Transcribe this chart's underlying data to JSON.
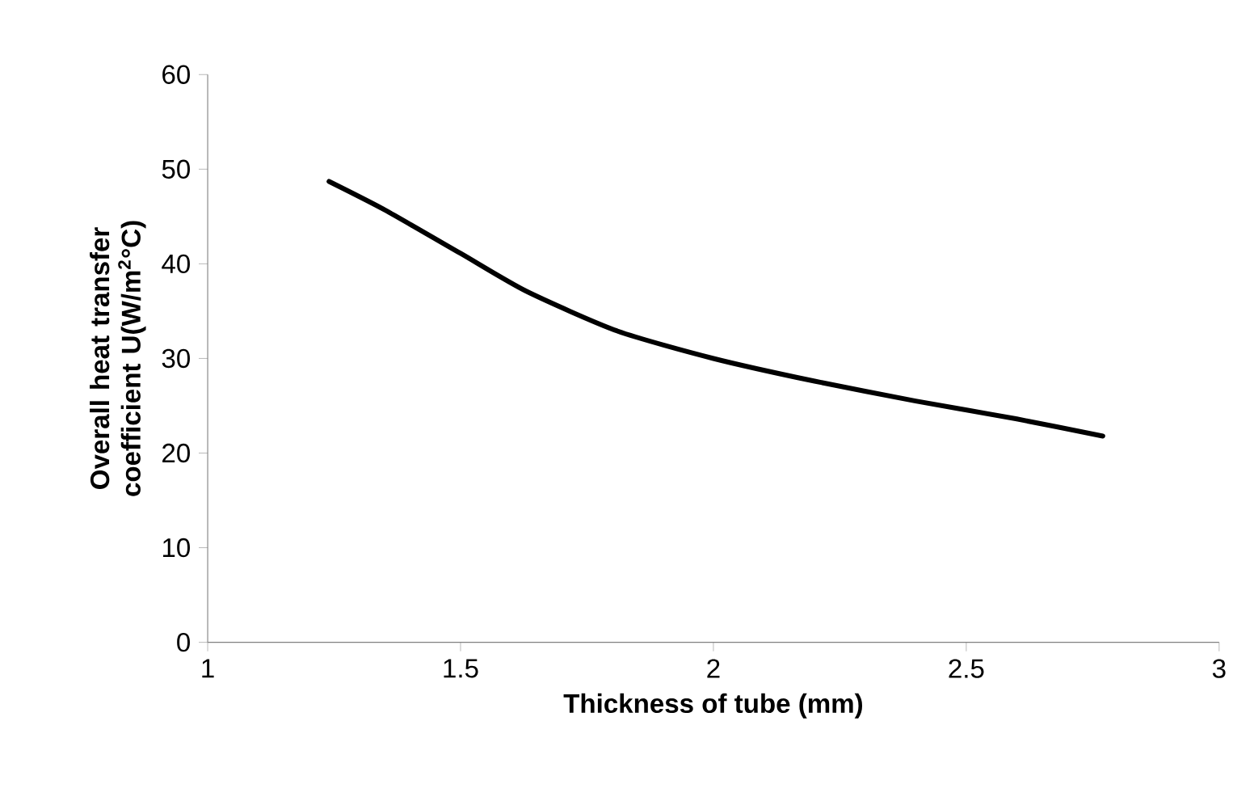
{
  "chart_data": {
    "type": "line",
    "xlabel": "Thickness of tube (mm)",
    "ylabel": "Overall heat transfer coefficient U(W/m$^{2}$°C)",
    "series": [
      {
        "color": "#000000",
        "x": [
          1.24,
          1.35,
          1.5,
          1.63,
          1.81,
          2.0,
          2.2,
          2.4,
          2.6,
          2.77
        ],
        "values": [
          48.7,
          45.7,
          41.1,
          37.1,
          32.9,
          30.0,
          27.6,
          25.5,
          23.6,
          21.8
        ]
      }
    ],
    "xlim": [
      1,
      3
    ],
    "ylim": [
      0,
      60
    ],
    "xticks": [
      1,
      1.5,
      2,
      2.5,
      3
    ],
    "yticks": [
      0,
      10,
      20,
      30,
      40,
      50,
      60
    ],
    "grid": false,
    "marker": "none",
    "line_style": "solid"
  }
}
